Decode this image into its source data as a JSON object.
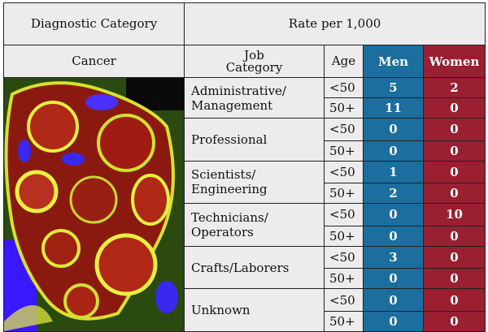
{
  "header": {
    "diagnostic_category": "Diagnostic Category",
    "rate_label": "Rate per 1,000",
    "cancer": "Cancer",
    "job_category": "Job Category",
    "age": "Age",
    "men": "Men",
    "women": "Women"
  },
  "rows": [
    {
      "job": "Administrative/ Management",
      "ages": [
        "<50",
        "50+"
      ],
      "men": [
        5,
        11
      ],
      "women": [
        2,
        0
      ]
    },
    {
      "job": "Professional",
      "ages": [
        "<50",
        "50+"
      ],
      "men": [
        0,
        0
      ],
      "women": [
        0,
        0
      ]
    },
    {
      "job": "Scientists/ Engineering",
      "ages": [
        "<50",
        "50+"
      ],
      "men": [
        1,
        2
      ],
      "women": [
        0,
        0
      ]
    },
    {
      "job": "Technicians/ Operators",
      "ages": [
        "<50",
        "50+"
      ],
      "men": [
        0,
        0
      ],
      "women": [
        10,
        0
      ]
    },
    {
      "job": "Crafts/Laborers",
      "ages": [
        "<50",
        "50+"
      ],
      "men": [
        3,
        0
      ],
      "women": [
        0,
        0
      ]
    },
    {
      "job": "Unknown",
      "ages": [
        "<50",
        "50+"
      ],
      "men": [
        0,
        0
      ],
      "women": [
        0,
        0
      ]
    }
  ]
}
